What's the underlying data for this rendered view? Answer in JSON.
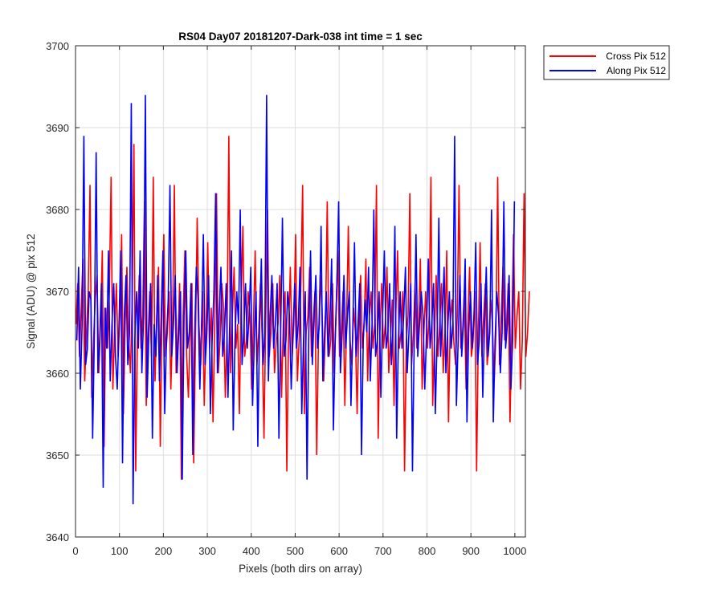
{
  "chart_data": {
    "type": "line",
    "title": "RS04 Day07 20181207-Dark-038 int time = 1 sec",
    "xlabel": "Pixels (both dirs on array)",
    "ylabel": "Signal (ADU) @ pix 512",
    "xlim": [
      0,
      1024
    ],
    "ylim": [
      3640,
      3700
    ],
    "xticks": [
      0,
      100,
      200,
      300,
      400,
      500,
      600,
      700,
      800,
      900,
      1000
    ],
    "yticks": [
      3640,
      3650,
      3660,
      3670,
      3680,
      3690,
      3700
    ],
    "grid": true,
    "legend_position": "outside-top-right",
    "series": [
      {
        "name": "Cross Pix 512",
        "color": "#ff0000",
        "x_start": 1,
        "x_step": 4,
        "values": [
          3666,
          3671,
          3662,
          3668,
          3674,
          3659,
          3665,
          3670,
          3683,
          3657,
          3664,
          3669,
          3672,
          3660,
          3666,
          3675,
          3651,
          3668,
          3663,
          3670,
          3684,
          3658,
          3665,
          3671,
          3662,
          3667,
          3677,
          3655,
          3666,
          3673,
          3664,
          3660,
          3669,
          3688,
          3648,
          3665,
          3672,
          3663,
          3667,
          3681,
          3656,
          3664,
          3670,
          3662,
          3684,
          3659,
          3667,
          3673,
          3651,
          3668,
          3677,
          3662,
          3665,
          3670,
          3658,
          3666,
          3683,
          3660,
          3664,
          3671,
          3647,
          3667,
          3675,
          3662,
          3657,
          3665,
          3671,
          3649,
          3664,
          3679,
          3666,
          3661,
          3670,
          3656,
          3665,
          3676,
          3663,
          3668,
          3654,
          3666,
          3682,
          3660,
          3664,
          3671,
          3668,
          3657,
          3665,
          3689,
          3660,
          3667,
          3673,
          3663,
          3666,
          3655,
          3669,
          3678,
          3662,
          3664,
          3670,
          3667,
          3658,
          3666,
          3675,
          3661,
          3665,
          3671,
          3664,
          3652,
          3667,
          3680,
          3662,
          3665,
          3671,
          3660,
          3664,
          3666,
          3672,
          3657,
          3666,
          3670,
          3648,
          3665,
          3673,
          3662,
          3666,
          3677,
          3659,
          3664,
          3671,
          3683,
          3655,
          3665,
          3667,
          3673,
          3662,
          3666,
          3670,
          3650,
          3664,
          3672,
          3668,
          3659,
          3666,
          3681,
          3662,
          3664,
          3671,
          3660,
          3667,
          3675,
          3662,
          3665,
          3670,
          3656,
          3666,
          3678,
          3664,
          3661,
          3668,
          3665,
          3655,
          3666,
          3672,
          3663,
          3666,
          3674,
          3659,
          3667,
          3670,
          3663,
          3666,
          3683,
          3652,
          3665,
          3671,
          3663,
          3666,
          3673,
          3660,
          3664,
          3669,
          3656,
          3667,
          3675,
          3663,
          3665,
          3670,
          3648,
          3664,
          3667,
          3682,
          3661,
          3665,
          3671,
          3663,
          3666,
          3674,
          3658,
          3665,
          3670,
          3663,
          3667,
          3684,
          3656,
          3664,
          3672,
          3662,
          3666,
          3671,
          3660,
          3665,
          3675,
          3654,
          3666,
          3669,
          3664,
          3661,
          3667,
          3683,
          3663,
          3665,
          3670,
          3658,
          3666,
          3673,
          3662,
          3664,
          3670,
          3648,
          3665,
          3676,
          3662,
          3667,
          3671,
          3661,
          3664,
          3669,
          3666,
          3659,
          3665,
          3684,
          3661,
          3667,
          3673,
          3664,
          3666,
          3671,
          3654,
          3665,
          3677,
          3663,
          3667,
          3670,
          3658,
          3664,
          3682,
          3662,
          3665,
          3670
        ]
      },
      {
        "name": "Along Pix 512",
        "color": "#0000ff",
        "x_start": 3,
        "x_step": 4,
        "values": [
          3664,
          3673,
          3658,
          3666,
          3689,
          3661,
          3663,
          3670,
          3669,
          3652,
          3665,
          3687,
          3660,
          3664,
          3671,
          3646,
          3668,
          3663,
          3675,
          3659,
          3666,
          3671,
          3662,
          3658,
          3666,
          3675,
          3649,
          3667,
          3672,
          3661,
          3665,
          3693,
          3644,
          3664,
          3670,
          3663,
          3675,
          3660,
          3667,
          3694,
          3657,
          3665,
          3671,
          3652,
          3666,
          3662,
          3672,
          3659,
          3667,
          3675,
          3655,
          3664,
          3669,
          3683,
          3662,
          3666,
          3672,
          3660,
          3665,
          3670,
          3647,
          3667,
          3675,
          3663,
          3665,
          3671,
          3650,
          3664,
          3673,
          3669,
          3658,
          3666,
          3677,
          3661,
          3665,
          3672,
          3655,
          3664,
          3670,
          3682,
          3660,
          3667,
          3673,
          3662,
          3665,
          3671,
          3657,
          3666,
          3675,
          3653,
          3664,
          3670,
          3666,
          3680,
          3661,
          3665,
          3671,
          3663,
          3667,
          3673,
          3656,
          3664,
          3670,
          3651,
          3666,
          3674,
          3661,
          3665,
          3694,
          3659,
          3667,
          3672,
          3663,
          3666,
          3671,
          3652,
          3665,
          3679,
          3662,
          3664,
          3670,
          3667,
          3658,
          3665,
          3671,
          3663,
          3666,
          3673,
          3655,
          3664,
          3670,
          3647,
          3665,
          3675,
          3661,
          3667,
          3672,
          3663,
          3666,
          3678,
          3659,
          3665,
          3670,
          3662,
          3666,
          3674,
          3653,
          3664,
          3671,
          3681,
          3660,
          3665,
          3672,
          3663,
          3667,
          3670,
          3656,
          3665,
          3676,
          3662,
          3666,
          3671,
          3650,
          3664,
          3669,
          3665,
          3673,
          3659,
          3666,
          3680,
          3662,
          3664,
          3670,
          3657,
          3667,
          3675,
          3663,
          3665,
          3671,
          3661,
          3666,
          3678,
          3652,
          3664,
          3670,
          3663,
          3667,
          3673,
          3660,
          3665,
          3671,
          3648,
          3664,
          3677,
          3662,
          3666,
          3670,
          3667,
          3658,
          3665,
          3674,
          3663,
          3666,
          3671,
          3655,
          3664,
          3679,
          3662,
          3667,
          3673,
          3660,
          3665,
          3670,
          3663,
          3666,
          3689,
          3656,
          3664,
          3672,
          3662,
          3666,
          3674,
          3654,
          3665,
          3670,
          3663,
          3667,
          3676,
          3661,
          3664,
          3671,
          3657,
          3666,
          3673,
          3662,
          3665,
          3680,
          3654,
          3664,
          3670,
          3667,
          3660,
          3665,
          3681,
          3663,
          3666,
          3672,
          3658,
          3664,
          3681
        ]
      }
    ]
  }
}
